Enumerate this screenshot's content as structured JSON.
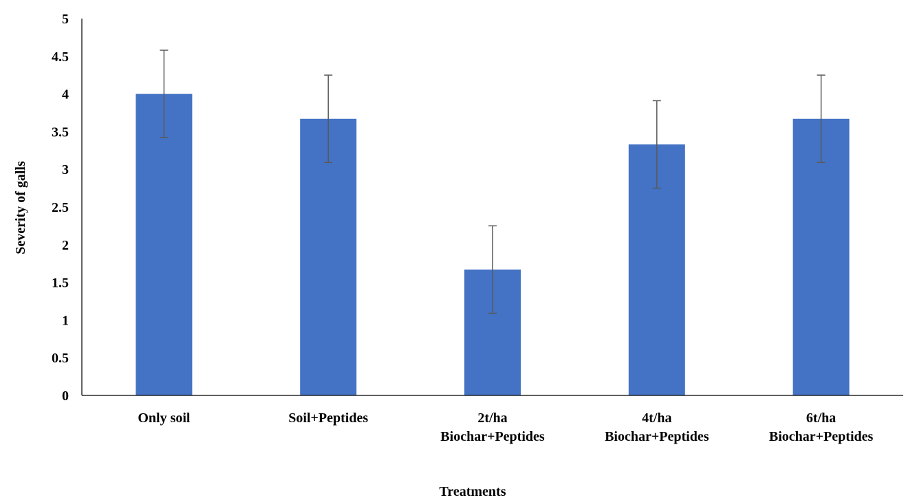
{
  "chart_data": {
    "type": "bar",
    "title": "",
    "xlabel": "Treatments",
    "ylabel": "Severity of galls",
    "ylim": [
      0,
      5
    ],
    "yticks": [
      "0",
      "0.5",
      "1",
      "1.5",
      "2",
      "2.5",
      "3",
      "3.5",
      "4",
      "4.5",
      "5"
    ],
    "categories": [
      [
        "Only soil"
      ],
      [
        "Soil+Peptides"
      ],
      [
        "2t/ha",
        "Biochar+Peptides"
      ],
      [
        "4t/ha",
        "Biochar+Peptides"
      ],
      [
        "6t/ha",
        "Biochar+Peptides"
      ]
    ],
    "values": [
      4.0,
      3.67,
      1.67,
      3.33,
      3.67
    ],
    "error": [
      0.58,
      0.58,
      0.58,
      0.58,
      0.58
    ],
    "grid": false,
    "legend": "none",
    "colors": {
      "bar": "#4472C4",
      "error_bar": "#595959",
      "axis": "#000000"
    }
  }
}
